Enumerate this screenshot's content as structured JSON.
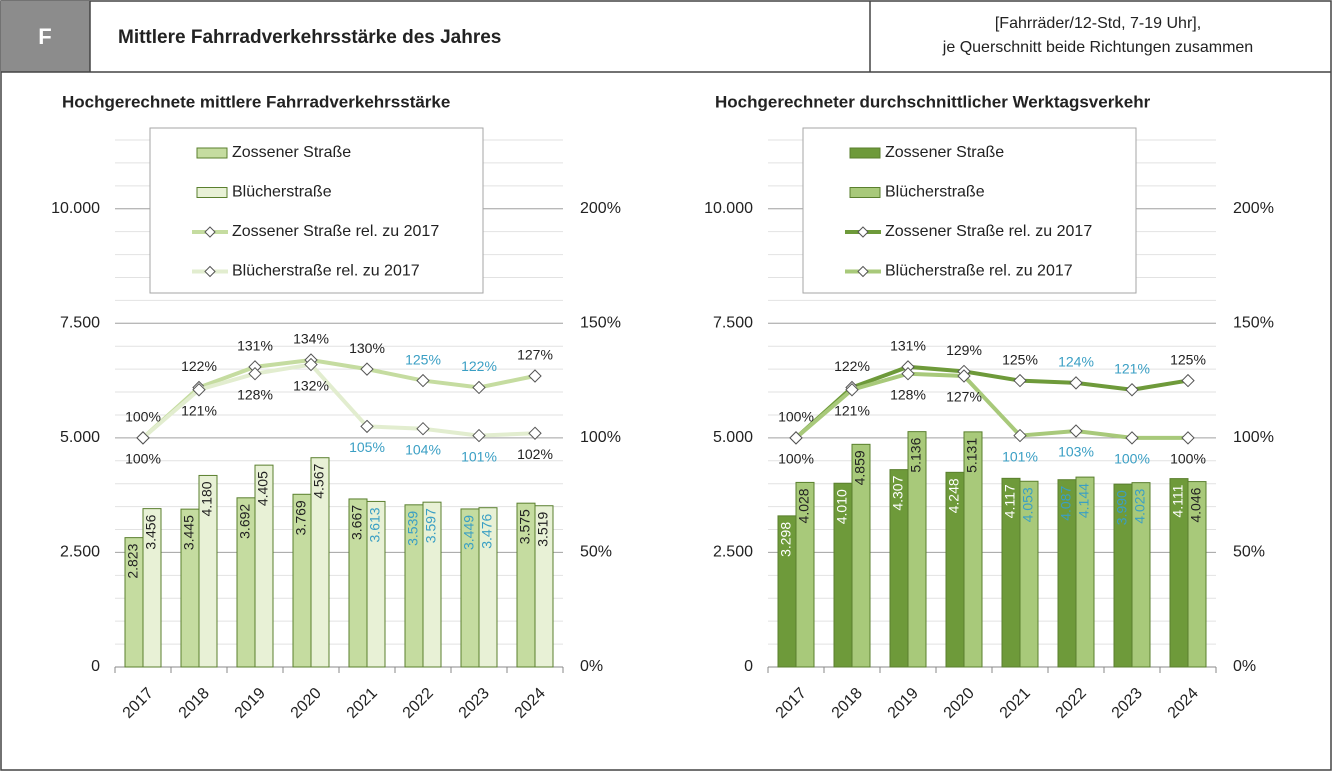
{
  "header": {
    "letter": "F",
    "title": "Mittlere Fahrradverkehrsstärke des Jahres",
    "note": [
      "[Fahrräder/12-Std, 7-19 Uhr],",
      "je Querschnitt beide Richtungen zusammen"
    ]
  },
  "chart_data": [
    {
      "type": "bar",
      "title": "Hochgerechnete mittlere Fahrradverkehrsstärke",
      "categories": [
        "2017",
        "2018",
        "2019",
        "2020",
        "2021",
        "2022",
        "2023",
        "2024"
      ],
      "ylim": [
        0,
        11500
      ],
      "yticks": [
        0,
        {
          "value": 2500,
          "label": "2.500"
        },
        {
          "value": 5000,
          "label": "5.000"
        },
        {
          "value": 7500,
          "label": "7.500"
        },
        {
          "value": 10000,
          "label": "10.000"
        }
      ],
      "y2lim": [
        0,
        230
      ],
      "y2ticks": [
        {
          "value": 0,
          "label": "0%"
        },
        {
          "value": 50,
          "label": "50%"
        },
        {
          "value": 100,
          "label": "100%"
        },
        {
          "value": 150,
          "label": "150%"
        },
        {
          "value": 200,
          "label": "200%"
        }
      ],
      "minor_step": 500,
      "grid": true,
      "series": [
        {
          "name": "Zossener Straße",
          "color": "#c5dca0",
          "values": [
            2823,
            3445,
            3692,
            3769,
            3667,
            3539,
            3449,
            3575
          ],
          "value_labels": [
            "2.823",
            "3.445",
            "3.692",
            "3.769",
            "3.667",
            "3.539",
            "3.449",
            "3.575"
          ],
          "label_colors": [
            "#222",
            "#222",
            "#222",
            "#222",
            "#222",
            "#3a9fc4",
            "#3a9fc4",
            "#222"
          ]
        },
        {
          "name": "Blücherstraße",
          "color": "#e8f1d6",
          "values": [
            3456,
            4180,
            4405,
            4567,
            3613,
            3597,
            3476,
            3519
          ],
          "value_labels": [
            "3.456",
            "4.180",
            "4.405",
            "4.567",
            "3.613",
            "3.597",
            "3.476",
            "3.519"
          ],
          "label_colors": [
            "#222",
            "#222",
            "#222",
            "#222",
            "#3a9fc4",
            "#3a9fc4",
            "#3a9fc4",
            "#222"
          ]
        },
        {
          "name": "Zossener Straße rel. zu 2017",
          "type": "line",
          "axis": "y2",
          "color": "#c5dca0",
          "values": [
            100,
            122,
            131,
            134,
            130,
            125,
            122,
            127
          ],
          "value_labels": [
            "100%",
            "122%",
            "131%",
            "134%",
            "130%",
            "125%",
            "122%",
            "127%"
          ],
          "label_colors": [
            "#222",
            "#222",
            "#222",
            "#222",
            "#222",
            "#3a9fc4",
            "#3a9fc4",
            "#222"
          ]
        },
        {
          "name": "Blücherstraße rel. zu 2017",
          "type": "line",
          "axis": "y2",
          "color": "#e2edcf",
          "values": [
            100,
            121,
            128,
            132,
            105,
            104,
            101,
            102
          ],
          "value_labels": [
            "100%",
            "121%",
            "128%",
            "132%",
            "105%",
            "104%",
            "101%",
            "102%"
          ],
          "label_colors": [
            "#222",
            "#222",
            "#222",
            "#222",
            "#3a9fc4",
            "#3a9fc4",
            "#3a9fc4",
            "#222"
          ]
        }
      ]
    },
    {
      "type": "bar",
      "title": "Hochgerechneter durchschnittlicher Werktagsverkehr",
      "categories": [
        "2017",
        "2018",
        "2019",
        "2020",
        "2021",
        "2022",
        "2023",
        "2024"
      ],
      "ylim": [
        0,
        11500
      ],
      "yticks": [
        0,
        {
          "value": 2500,
          "label": "2.500"
        },
        {
          "value": 5000,
          "label": "5.000"
        },
        {
          "value": 7500,
          "label": "7.500"
        },
        {
          "value": 10000,
          "label": "10.000"
        }
      ],
      "y2lim": [
        0,
        230
      ],
      "y2ticks": [
        {
          "value": 0,
          "label": "0%"
        },
        {
          "value": 50,
          "label": "50%"
        },
        {
          "value": 100,
          "label": "100%"
        },
        {
          "value": 150,
          "label": "150%"
        },
        {
          "value": 200,
          "label": "200%"
        }
      ],
      "minor_step": 500,
      "grid": true,
      "series": [
        {
          "name": "Zossener Straße",
          "color": "#6e9a3a",
          "values": [
            3298,
            4010,
            4307,
            4248,
            4117,
            4087,
            3990,
            4111
          ],
          "value_labels": [
            "3.298",
            "4.010",
            "4.307",
            "4.248",
            "4.117",
            "4.087",
            "3.990",
            "4.111"
          ],
          "label_colors": [
            "#fff",
            "#fff",
            "#fff",
            "#fff",
            "#fff",
            "#3a9fc4",
            "#3a9fc4",
            "#fff"
          ]
        },
        {
          "name": "Blücherstraße",
          "color": "#a8c97a",
          "values": [
            4028,
            4859,
            5136,
            5131,
            4053,
            4144,
            4023,
            4046
          ],
          "value_labels": [
            "4.028",
            "4.859",
            "5.136",
            "5.131",
            "4.053",
            "4.144",
            "4.023",
            "4.046"
          ],
          "label_colors": [
            "#222",
            "#222",
            "#222",
            "#222",
            "#3a9fc4",
            "#3a9fc4",
            "#3a9fc4",
            "#222"
          ]
        },
        {
          "name": "Zossener Straße rel. zu 2017",
          "type": "line",
          "axis": "y2",
          "color": "#6e9a3a",
          "values": [
            100,
            122,
            131,
            129,
            125,
            124,
            121,
            125
          ],
          "value_labels": [
            "100%",
            "122%",
            "131%",
            "129%",
            "125%",
            "124%",
            "121%",
            "125%"
          ],
          "label_colors": [
            "#222",
            "#222",
            "#222",
            "#222",
            "#222",
            "#3a9fc4",
            "#3a9fc4",
            "#222"
          ]
        },
        {
          "name": "Blücherstraße rel. zu 2017",
          "type": "line",
          "axis": "y2",
          "color": "#a8c97a",
          "values": [
            100,
            121,
            128,
            127,
            101,
            103,
            100,
            100
          ],
          "value_labels": [
            "100%",
            "121%",
            "128%",
            "127%",
            "101%",
            "103%",
            "100%",
            "100%"
          ],
          "label_colors": [
            "#222",
            "#222",
            "#222",
            "#222",
            "#3a9fc4",
            "#3a9fc4",
            "#3a9fc4",
            "#222"
          ]
        }
      ]
    }
  ]
}
